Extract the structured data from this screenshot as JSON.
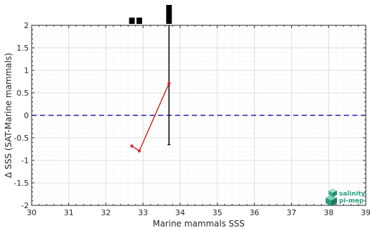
{
  "chart_data": {
    "type": "line",
    "xlabel": "Marine mammals SSS",
    "ylabel": "Δ SSS (SAT-Marine mammals)",
    "xlim": [
      30,
      39
    ],
    "ylim": [
      -2,
      2
    ],
    "xticks": [
      "30",
      "31",
      "32",
      "33",
      "34",
      "35",
      "36",
      "37",
      "38",
      "39"
    ],
    "yticks": [
      "-2",
      "-1.5",
      "-1",
      "-0.5",
      "0",
      "0.5",
      "1",
      "1.5",
      "2"
    ],
    "grid": true,
    "reference_line": {
      "y": 0,
      "style": "dashed",
      "color": "#1f1fb4"
    },
    "series": [
      {
        "color": "#d62728",
        "x": [
          32.7,
          32.9,
          33.7
        ],
        "y": [
          -0.68,
          -0.79,
          0.71
        ]
      }
    ],
    "error_bars": [
      {
        "x": 33.7,
        "y": 0.71,
        "low": -0.65,
        "high": 2.0
      }
    ],
    "histogram_top": {
      "bins": [
        {
          "x": 32.7,
          "count": 1
        },
        {
          "x": 32.9,
          "count": 1
        },
        {
          "x": 33.7,
          "count": 3
        }
      ]
    }
  },
  "logo": {
    "line1": "salinity",
    "line2": "pi-mep",
    "color": "#2a9d7f",
    "icon": "cube-cluster-icon"
  }
}
